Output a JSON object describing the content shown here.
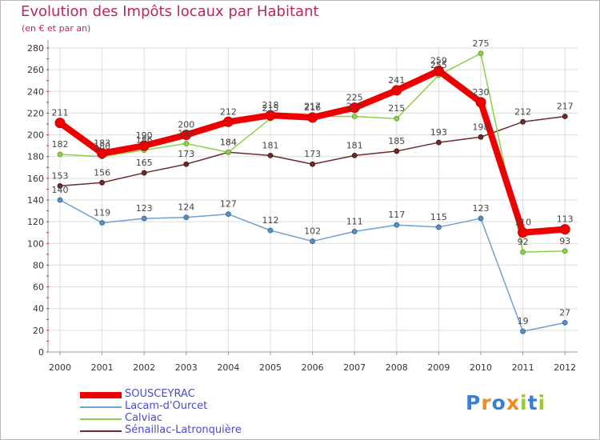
{
  "header": {
    "title": "Evolution des Impôts locaux par Habitant",
    "subtitle": "(en € et par an)"
  },
  "logo": {
    "text": "Proxiti"
  },
  "chart_data": {
    "type": "line",
    "title": "Evolution des Impôts locaux par Habitant",
    "subtitle": "(en € et par an)",
    "xlabel": "",
    "ylabel": "",
    "ylim": [
      0,
      280
    ],
    "yticks": [
      0,
      20,
      40,
      60,
      80,
      100,
      120,
      140,
      160,
      180,
      200,
      220,
      240,
      260,
      280
    ],
    "grid": true,
    "legend_position": "bottom-left",
    "categories": [
      "2000",
      "2001",
      "2002",
      "2003",
      "2004",
      "2005",
      "2006",
      "2007",
      "2008",
      "2009",
      "2010",
      "2011",
      "2012"
    ],
    "series": [
      {
        "name": "SOUSCEYRAC",
        "color": "#ee0000",
        "values": [
          211,
          183,
          190,
          200,
          212,
          218,
          216,
          225,
          241,
          259,
          230,
          110,
          113
        ]
      },
      {
        "name": "Lacam-d'Ourcet",
        "color": "#6fa0cf",
        "values": [
          140,
          119,
          123,
          124,
          127,
          112,
          102,
          111,
          117,
          115,
          123,
          19,
          27
        ]
      },
      {
        "name": "Calviac",
        "color": "#8fd04a",
        "values": [
          182,
          180,
          186,
          192,
          184,
          215,
          217,
          217,
          215,
          255,
          275,
          92,
          93
        ]
      },
      {
        "name": "Sénaillac-Latronquière",
        "color": "#6e2b2b",
        "values": [
          153,
          156,
          165,
          173,
          184,
          181,
          173,
          181,
          185,
          193,
          198,
          212,
          217
        ]
      }
    ]
  }
}
